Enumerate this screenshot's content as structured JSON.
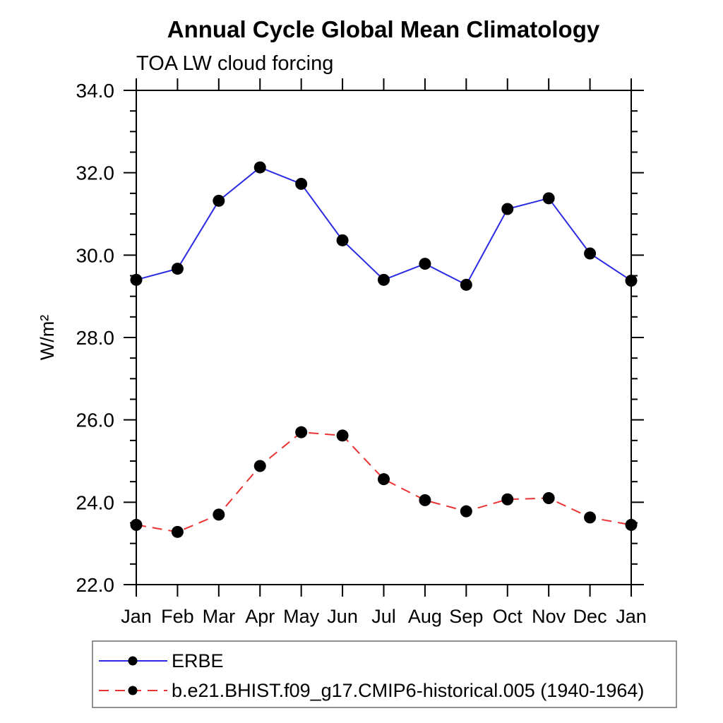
{
  "page": {
    "background": "#ffffff"
  },
  "chart_data": {
    "type": "line",
    "title": "Annual Cycle Global Mean Climatology",
    "subtitle": "TOA LW cloud forcing",
    "ylabel": "W/m²",
    "xlabel": "",
    "categories": [
      "Jan",
      "Feb",
      "Mar",
      "Apr",
      "May",
      "Jun",
      "Jul",
      "Aug",
      "Sep",
      "Oct",
      "Nov",
      "Dec",
      "Jan"
    ],
    "ylim": [
      22.0,
      34.0
    ],
    "ytick_major_values": [
      22,
      24,
      26,
      28,
      30,
      32,
      34
    ],
    "ytick_labels": [
      "22.0",
      "24.0",
      "26.0",
      "28.0",
      "30.0",
      "32.0",
      "34.0"
    ],
    "ytick_minor_step": 0.5,
    "grid": false,
    "frame": "box-with-outward-ticks",
    "legend_position": "bottom-left-boxed",
    "axis_color": "#000000",
    "marker_color": "#000000",
    "series": [
      {
        "name": "ERBE",
        "color": "#2a2ae2",
        "style": "solid",
        "marker": "filled-circle",
        "values": [
          29.4,
          29.67,
          31.32,
          32.13,
          31.73,
          30.36,
          29.4,
          29.79,
          29.28,
          31.12,
          31.38,
          30.04,
          29.38
        ]
      },
      {
        "name": "b.e21.BHIST.f09_g17.CMIP6-historical.005 (1940-1964)",
        "color": "#ea3232",
        "style": "dashed",
        "marker": "filled-circle",
        "values": [
          23.45,
          23.28,
          23.7,
          24.88,
          25.7,
          25.62,
          24.56,
          24.05,
          23.78,
          24.07,
          24.1,
          23.63,
          23.45
        ]
      }
    ]
  }
}
